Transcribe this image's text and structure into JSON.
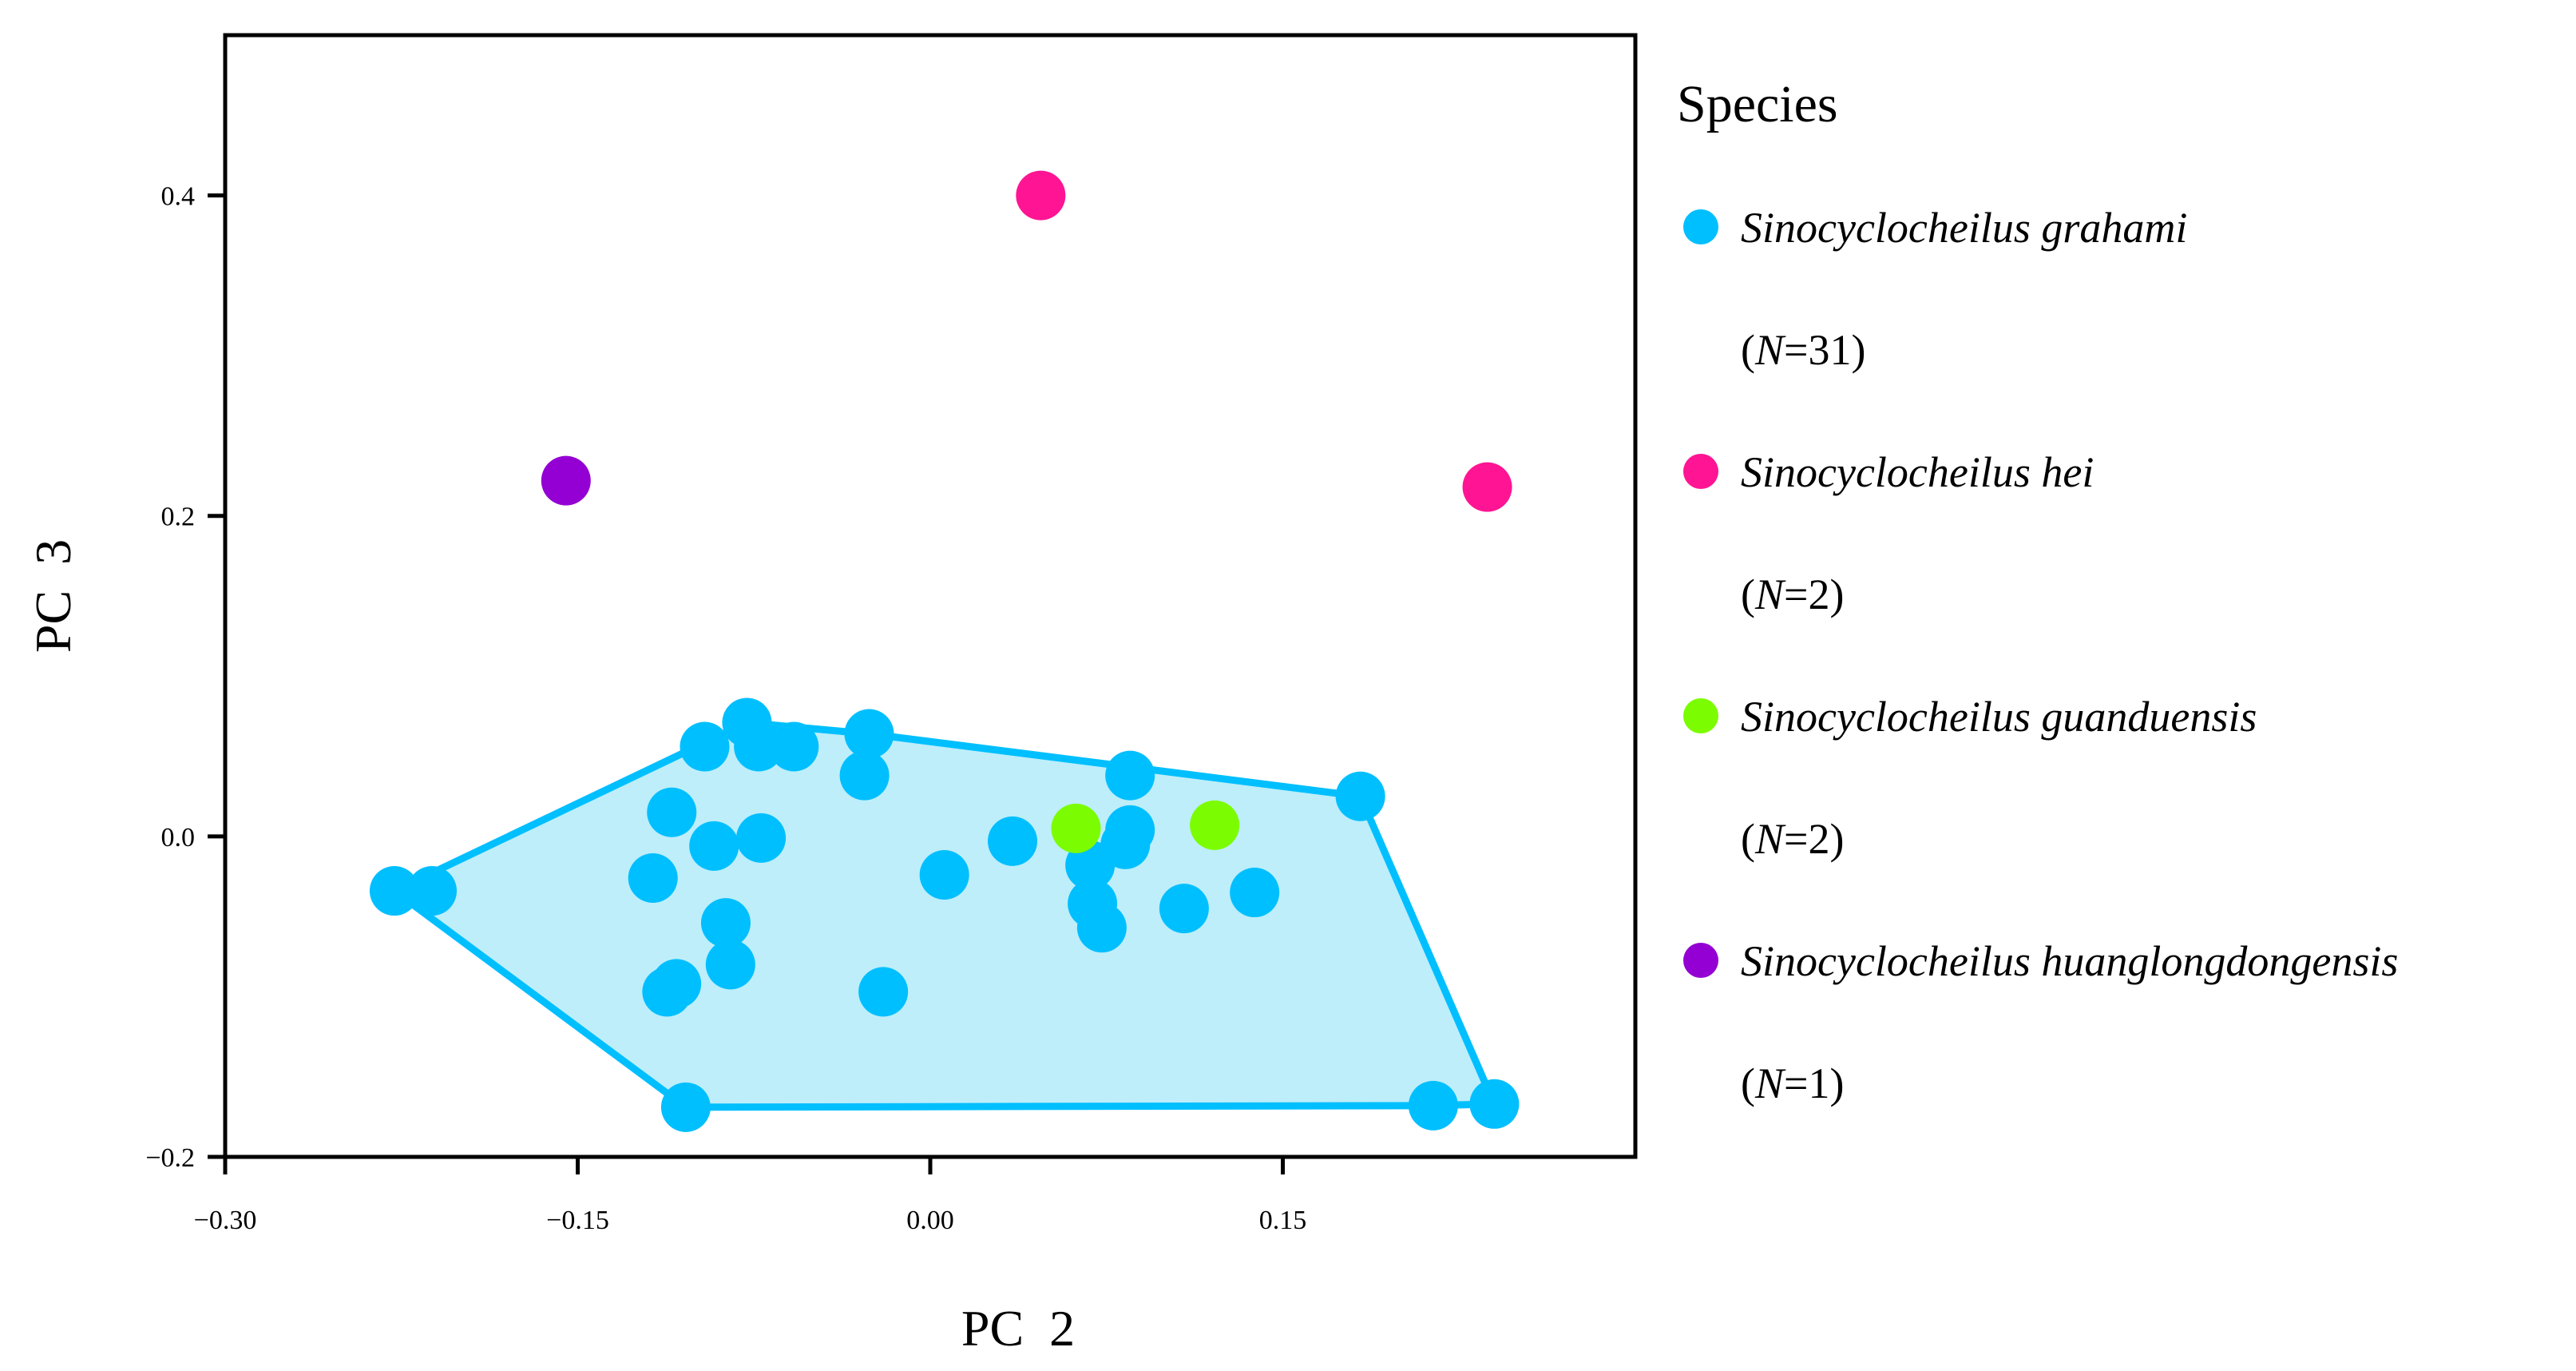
{
  "chart_data": {
    "type": "scatter",
    "xlabel": "PC  2",
    "ylabel": "PC  3",
    "xlim": [
      -0.3,
      0.3
    ],
    "ylim": [
      -0.2,
      0.5
    ],
    "xticks": [
      -0.3,
      -0.15,
      0.0,
      0.15
    ],
    "xtick_labels": [
      "−0.30",
      "−0.15",
      "0.00",
      "0.15"
    ],
    "yticks": [
      -0.2,
      0.0,
      0.2,
      0.4
    ],
    "ytick_labels": [
      "−0.2",
      "0.0",
      "0.2",
      "0.4"
    ],
    "grid": false,
    "legend": {
      "title": "Species",
      "placement": "outside-right"
    },
    "series": [
      {
        "name": "Sinocyclocheilus grahami",
        "n_label": "N",
        "n_value": "=31)",
        "color": "#00BFFF",
        "hull_fill": "#BDEEFA",
        "show_hull": true,
        "points": [
          [
            -0.228,
            -0.034
          ],
          [
            -0.212,
            -0.034
          ],
          [
            -0.096,
            0.056
          ],
          [
            -0.078,
            0.071
          ],
          [
            -0.073,
            0.056
          ],
          [
            -0.058,
            0.056
          ],
          [
            -0.026,
            0.064
          ],
          [
            -0.028,
            0.038
          ],
          [
            -0.11,
            0.015
          ],
          [
            -0.092,
            -0.006
          ],
          [
            -0.072,
            -0.001
          ],
          [
            -0.118,
            -0.026
          ],
          [
            -0.087,
            -0.054
          ],
          [
            -0.085,
            -0.08
          ],
          [
            -0.112,
            -0.097
          ],
          [
            -0.108,
            -0.092
          ],
          [
            -0.104,
            -0.169
          ],
          [
            -0.02,
            -0.097
          ],
          [
            0.006,
            -0.024
          ],
          [
            0.035,
            -0.003
          ],
          [
            0.068,
            -0.018
          ],
          [
            0.069,
            -0.042
          ],
          [
            0.073,
            -0.057
          ],
          [
            0.083,
            -0.005
          ],
          [
            0.085,
            0.004
          ],
          [
            0.085,
            0.038
          ],
          [
            0.108,
            -0.045
          ],
          [
            0.138,
            -0.035
          ],
          [
            0.183,
            0.025
          ],
          [
            0.214,
            -0.168
          ],
          [
            0.24,
            -0.167
          ]
        ]
      },
      {
        "name": "Sinocyclocheilus hei",
        "n_label": "N",
        "n_value": "=2)",
        "color": "#FF1493",
        "show_hull": false,
        "points": [
          [
            0.047,
            0.4
          ],
          [
            0.237,
            0.218
          ]
        ]
      },
      {
        "name": "Sinocyclocheilus guanduensis",
        "n_label": "N",
        "n_value": "=2)",
        "color": "#7CFC00",
        "show_hull": false,
        "points": [
          [
            0.062,
            0.005
          ],
          [
            0.121,
            0.007
          ]
        ]
      },
      {
        "name": "Sinocyclocheilus huanglongdongensis",
        "n_label": "N",
        "n_value": "=1)",
        "color": "#9400D3",
        "show_hull": false,
        "points": [
          [
            -0.155,
            0.222
          ]
        ]
      }
    ]
  }
}
